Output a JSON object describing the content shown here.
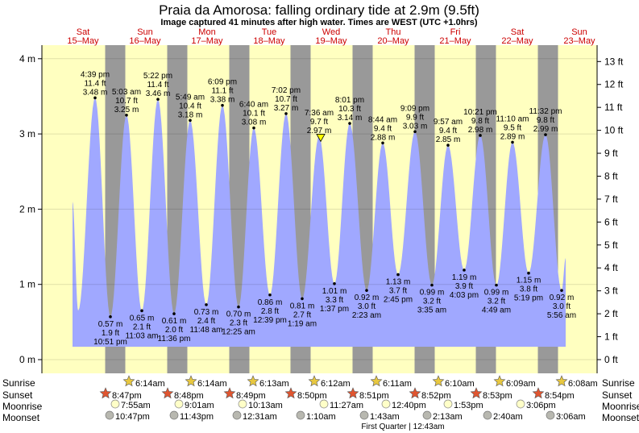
{
  "title": "Praia da Amorosa: falling  ordinary tide at 2.9m (9.5ft)",
  "subtitle": "Image captured 41 minutes after high water. Times are WEST (UTC +1.0hrs)",
  "colors": {
    "day": "#ffffc0",
    "night": "#999999",
    "water": "#a0a8ff",
    "day_label": "#cc0000"
  },
  "chart_data": {
    "type": "area",
    "title": "Praia da Amorosa: falling  ordinary tide at 2.9m (9.5ft)",
    "xlabel": "",
    "ylabel": "m",
    "ylim": [
      0,
      4.3
    ],
    "y_ticks_m": [
      "0 m",
      "1 m",
      "2 m",
      "3 m",
      "4 m"
    ],
    "y_ticks_m_values": [
      0,
      1,
      2,
      3,
      4
    ],
    "y_ticks_ft": [
      "0 ft",
      "1 ft",
      "2 ft",
      "3 ft",
      "4 ft",
      "5 ft",
      "6 ft",
      "7 ft",
      "8 ft",
      "9 ft",
      "10 ft",
      "11 ft",
      "12 ft",
      "13 ft"
    ],
    "days": [
      {
        "dow": "Sat",
        "date": "15–May"
      },
      {
        "dow": "Sun",
        "date": "16–May"
      },
      {
        "dow": "Mon",
        "date": "17–May"
      },
      {
        "dow": "Tue",
        "date": "18–May"
      },
      {
        "dow": "Wed",
        "date": "19–May"
      },
      {
        "dow": "Thu",
        "date": "20–May"
      },
      {
        "dow": "Fri",
        "date": "21–May"
      },
      {
        "dow": "Sat",
        "date": "22–May"
      },
      {
        "dow": "Sun",
        "date": "23–May"
      }
    ],
    "current": {
      "height_m": 2.9,
      "label": "falling ordinary tide at 2.9m (9.5ft)"
    },
    "extremes": [
      {
        "kind": "high",
        "time": "4:39 pm",
        "ft": "11.4 ft",
        "m": "3.48 m",
        "value": 3.48
      },
      {
        "kind": "low",
        "time": "10:51 pm",
        "ft": "1.9 ft",
        "m": "0.57 m",
        "value": 0.57
      },
      {
        "kind": "high",
        "time": "5:03 am",
        "ft": "10.7 ft",
        "m": "3.25 m",
        "value": 3.25
      },
      {
        "kind": "low",
        "time": "11:03 am",
        "ft": "2.1 ft",
        "m": "0.65 m",
        "value": 0.65
      },
      {
        "kind": "high",
        "time": "5:22 pm",
        "ft": "11.4 ft",
        "m": "3.46 m",
        "value": 3.46
      },
      {
        "kind": "low",
        "time": "11:36 pm",
        "ft": "2.0 ft",
        "m": "0.61 m",
        "value": 0.61
      },
      {
        "kind": "high",
        "time": "5:49 am",
        "ft": "10.4 ft",
        "m": "3.18 m",
        "value": 3.18
      },
      {
        "kind": "low",
        "time": "11:48 am",
        "ft": "2.4 ft",
        "m": "0.73 m",
        "value": 0.73
      },
      {
        "kind": "high",
        "time": "6:09 pm",
        "ft": "11.1 ft",
        "m": "3.38 m",
        "value": 3.38
      },
      {
        "kind": "low",
        "time": "12:25 am",
        "ft": "2.3 ft",
        "m": "0.70 m",
        "value": 0.7
      },
      {
        "kind": "high",
        "time": "6:40 am",
        "ft": "10.1 ft",
        "m": "3.08 m",
        "value": 3.08
      },
      {
        "kind": "low",
        "time": "12:39 pm",
        "ft": "2.8 ft",
        "m": "0.86 m",
        "value": 0.86
      },
      {
        "kind": "high",
        "time": "7:02 pm",
        "ft": "10.7 ft",
        "m": "3.27 m",
        "value": 3.27
      },
      {
        "kind": "low",
        "time": "1:19 am",
        "ft": "2.7 ft",
        "m": "0.81 m",
        "value": 0.81
      },
      {
        "kind": "high",
        "time": "7:36 am",
        "ft": "9.7 ft",
        "m": "2.97 m",
        "value": 2.97
      },
      {
        "kind": "low",
        "time": "1:37 pm",
        "ft": "3.3 ft",
        "m": "1.01 m",
        "value": 1.01
      },
      {
        "kind": "high",
        "time": "8:01 pm",
        "ft": "10.3 ft",
        "m": "3.14 m",
        "value": 3.14
      },
      {
        "kind": "low",
        "time": "2:23 am",
        "ft": "3.0 ft",
        "m": "0.92 m",
        "value": 0.92
      },
      {
        "kind": "high",
        "time": "8:44 am",
        "ft": "9.4 ft",
        "m": "2.88 m",
        "value": 2.88
      },
      {
        "kind": "low",
        "time": "2:45 pm",
        "ft": "3.7 ft",
        "m": "1.13 m",
        "value": 1.13
      },
      {
        "kind": "high",
        "time": "9:09 pm",
        "ft": "9.9 ft",
        "m": "3.03 m",
        "value": 3.03
      },
      {
        "kind": "low",
        "time": "3:35 am",
        "ft": "3.2 ft",
        "m": "0.99 m",
        "value": 0.99
      },
      {
        "kind": "high",
        "time": "9:57 am",
        "ft": "9.4 ft",
        "m": "2.85 m",
        "value": 2.85
      },
      {
        "kind": "low",
        "time": "4:03 pm",
        "ft": "3.9 ft",
        "m": "1.19 m",
        "value": 1.19
      },
      {
        "kind": "high",
        "time": "10:21 pm",
        "ft": "9.8 ft",
        "m": "2.98 m",
        "value": 2.98
      },
      {
        "kind": "low",
        "time": "4:49 am",
        "ft": "3.2 ft",
        "m": "0.99 m",
        "value": 0.99
      },
      {
        "kind": "high",
        "time": "11:10 am",
        "ft": "9.5 ft",
        "m": "2.89 m",
        "value": 2.89
      },
      {
        "kind": "low",
        "time": "5:19 pm",
        "ft": "3.8 ft",
        "m": "1.15 m",
        "value": 1.15
      },
      {
        "kind": "high",
        "time": "11:32 pm",
        "ft": "9.8 ft",
        "m": "2.99 m",
        "value": 2.99
      },
      {
        "kind": "low",
        "time": "5:56 am",
        "ft": "3.0 ft",
        "m": "0.92 m",
        "value": 0.92
      }
    ]
  },
  "almanac": {
    "labels": {
      "sunrise": "Sunrise",
      "sunset": "Sunset",
      "moonrise": "Moonrise",
      "moonset": "Moonset"
    },
    "sunrise": [
      "6:14am",
      "6:14am",
      "6:13am",
      "6:12am",
      "6:11am",
      "6:10am",
      "6:09am",
      "6:08am"
    ],
    "sunset": [
      "8:47pm",
      "8:48pm",
      "8:49pm",
      "8:50pm",
      "8:51pm",
      "8:52pm",
      "8:53pm",
      "8:54pm"
    ],
    "moonrise": [
      "7:55am",
      "9:01am",
      "10:13am",
      "11:27am",
      "12:40pm",
      "1:53pm",
      "3:06pm"
    ],
    "moonset": [
      "10:47pm",
      "11:43pm",
      "12:31am",
      "1:10am",
      "1:43am",
      "2:13am",
      "2:40am",
      "3:06am"
    ],
    "phase_note": "First Quarter | 12:43am"
  }
}
